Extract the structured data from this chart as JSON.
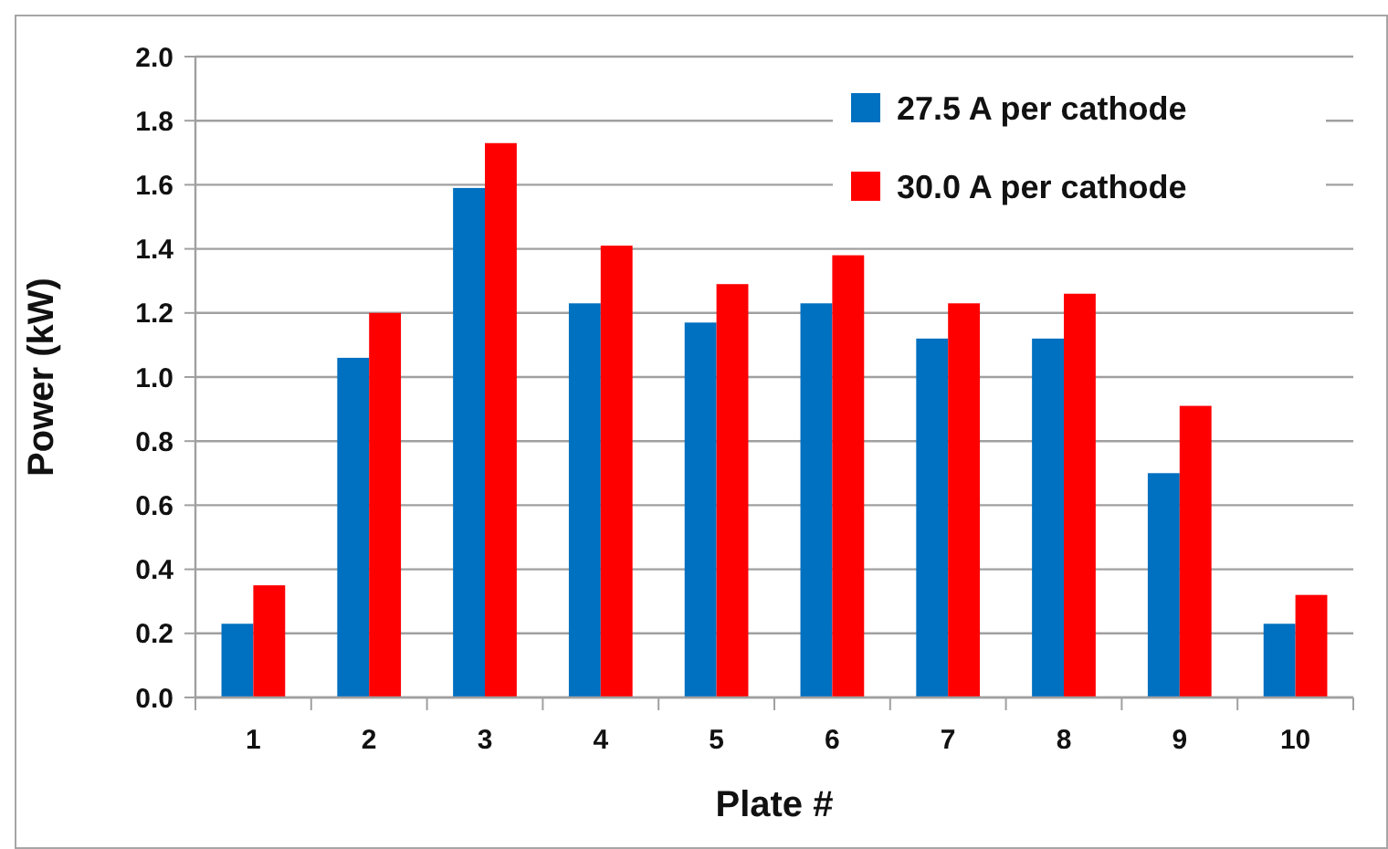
{
  "chart_data": {
    "type": "bar",
    "xlabel": "Plate #",
    "ylabel": "Power (kW)",
    "categories": [
      "1",
      "2",
      "3",
      "4",
      "5",
      "6",
      "7",
      "8",
      "9",
      "10"
    ],
    "series": [
      {
        "name": "27.5 A per cathode",
        "color": "#0070c0",
        "values": [
          0.23,
          1.06,
          1.59,
          1.23,
          1.17,
          1.23,
          1.12,
          1.12,
          0.7,
          0.23
        ]
      },
      {
        "name": "30.0 A per cathode",
        "color": "#ff0000",
        "values": [
          0.35,
          1.2,
          1.73,
          1.41,
          1.29,
          1.38,
          1.23,
          1.26,
          0.91,
          0.32
        ]
      }
    ],
    "ylim": [
      0,
      2
    ],
    "yticks": [
      {
        "value": 0,
        "label": "0.0"
      },
      {
        "value": 0.2,
        "label": "0.2"
      },
      {
        "value": 0.4,
        "label": "0.4"
      },
      {
        "value": 0.6,
        "label": "0.6"
      },
      {
        "value": 0.8,
        "label": "0.8"
      },
      {
        "value": 1,
        "label": "1.0"
      },
      {
        "value": 1.2,
        "label": "1.2"
      },
      {
        "value": 1.4,
        "label": "1.4"
      },
      {
        "value": 1.6,
        "label": "1.6"
      },
      {
        "value": 1.8,
        "label": "1.8"
      },
      {
        "value": 2,
        "label": "2.0"
      }
    ],
    "grid": "y",
    "legend": "top right"
  }
}
